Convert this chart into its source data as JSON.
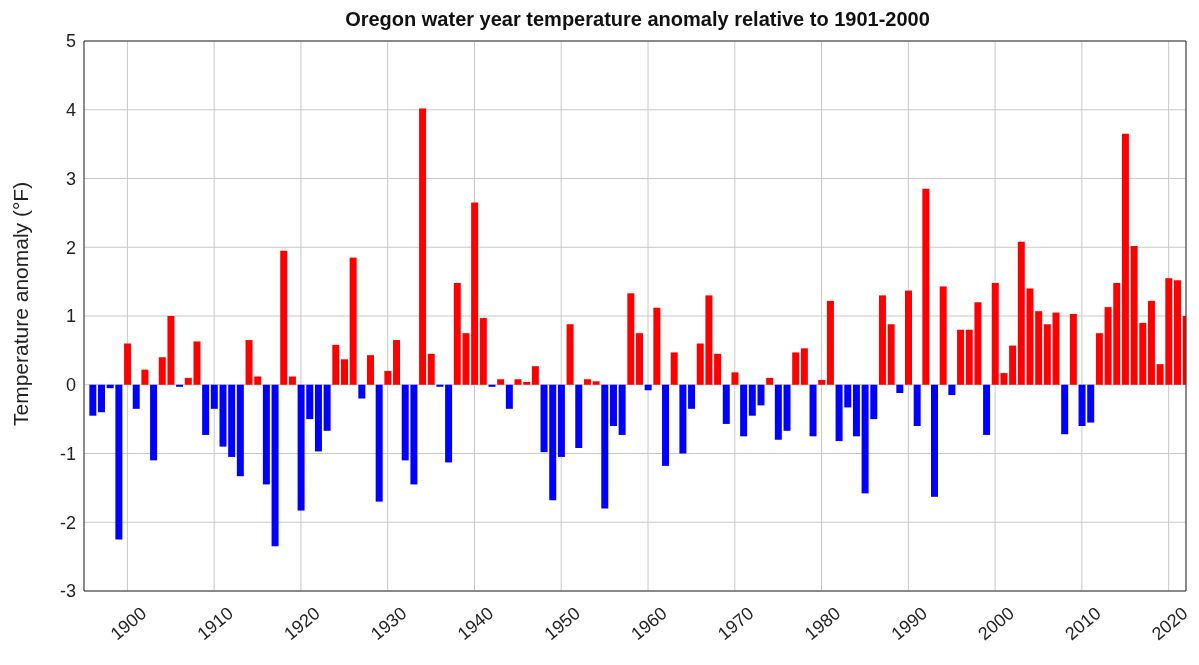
{
  "chart_data": {
    "type": "bar",
    "title": "Oregon water year temperature anomaly relative to 1901-2000",
    "ylabel": "Temperature anomaly (°F)",
    "x": [
      1896,
      1897,
      1898,
      1899,
      1900,
      1901,
      1902,
      1903,
      1904,
      1905,
      1906,
      1907,
      1908,
      1909,
      1910,
      1911,
      1912,
      1913,
      1914,
      1915,
      1916,
      1917,
      1918,
      1919,
      1920,
      1921,
      1922,
      1923,
      1924,
      1925,
      1926,
      1927,
      1928,
      1929,
      1930,
      1931,
      1932,
      1933,
      1934,
      1935,
      1936,
      1937,
      1938,
      1939,
      1940,
      1941,
      1942,
      1943,
      1944,
      1945,
      1946,
      1947,
      1948,
      1949,
      1950,
      1951,
      1952,
      1953,
      1954,
      1955,
      1956,
      1957,
      1958,
      1959,
      1960,
      1961,
      1962,
      1963,
      1964,
      1965,
      1966,
      1967,
      1968,
      1969,
      1970,
      1971,
      1972,
      1973,
      1974,
      1975,
      1976,
      1977,
      1978,
      1979,
      1980,
      1981,
      1982,
      1983,
      1984,
      1985,
      1986,
      1987,
      1988,
      1989,
      1990,
      1991,
      1992,
      1993,
      1994,
      1995,
      1996,
      1997,
      1998,
      1999,
      2000,
      2001,
      2002,
      2003,
      2004,
      2005,
      2006,
      2007,
      2008,
      2009,
      2010,
      2011,
      2012,
      2013,
      2014,
      2015,
      2016,
      2017,
      2018,
      2019,
      2020,
      2021,
      2022
    ],
    "values": [
      -0.45,
      -0.4,
      -0.05,
      -2.25,
      0.6,
      -0.35,
      0.22,
      -1.1,
      0.4,
      1.0,
      -0.03,
      0.1,
      0.63,
      -0.73,
      -0.35,
      -0.9,
      -1.05,
      -1.33,
      0.65,
      0.12,
      -1.45,
      -2.35,
      1.95,
      0.12,
      -1.83,
      -0.5,
      -0.97,
      -0.67,
      0.58,
      0.37,
      1.85,
      -0.2,
      0.43,
      -1.7,
      0.2,
      0.65,
      -1.1,
      -1.45,
      4.02,
      0.45,
      -0.03,
      -1.13,
      1.48,
      0.75,
      2.65,
      0.97,
      -0.03,
      0.08,
      -0.35,
      0.08,
      0.04,
      0.27,
      -0.98,
      -1.68,
      -1.05,
      0.88,
      -0.92,
      0.08,
      0.05,
      -1.8,
      -0.6,
      -0.73,
      1.33,
      0.75,
      -0.08,
      1.12,
      -1.18,
      0.47,
      -1.0,
      -0.35,
      0.6,
      1.3,
      0.45,
      -0.57,
      0.18,
      -0.75,
      -0.45,
      -0.3,
      0.1,
      -0.8,
      -0.67,
      0.47,
      0.53,
      -0.75,
      0.07,
      1.22,
      -0.82,
      -0.33,
      -0.75,
      -1.58,
      -0.5,
      1.3,
      0.88,
      -0.12,
      1.37,
      -0.6,
      2.85,
      -1.63,
      1.43,
      -0.15,
      0.8,
      0.8,
      1.2,
      -0.73,
      1.48,
      0.17,
      0.57,
      2.08,
      1.4,
      1.07,
      0.88,
      1.05,
      -0.72,
      1.03,
      -0.6,
      -0.55,
      0.75,
      1.13,
      1.48,
      3.65,
      2.02,
      0.9,
      1.22,
      0.3,
      1.55,
      1.52,
      1.0
    ],
    "colors": [
      "#0000ff",
      "#0000ff",
      "#0000ff",
      "#0000ff",
      "#ff0000",
      "#0000ff",
      "#ff0000",
      "#0000ff",
      "#ff0000",
      "#ff0000",
      "#0000ff",
      "#ff0000",
      "#ff0000",
      "#0000ff",
      "#0000ff",
      "#0000ff",
      "#0000ff",
      "#0000ff",
      "#ff0000",
      "#ff0000",
      "#0000ff",
      "#0000ff",
      "#ff0000",
      "#ff0000",
      "#0000ff",
      "#0000ff",
      "#0000ff",
      "#0000ff",
      "#ff0000",
      "#ff0000",
      "#ff0000",
      "#0000ff",
      "#ff0000",
      "#0000ff",
      "#ff0000",
      "#ff0000",
      "#0000ff",
      "#0000ff",
      "#ff0000",
      "#ff0000",
      "#0000ff",
      "#0000ff",
      "#ff0000",
      "#ff0000",
      "#ff0000",
      "#ff0000",
      "#0000ff",
      "#ff0000",
      "#0000ff",
      "#ff0000",
      "#ff0000",
      "#ff0000",
      "#0000ff",
      "#0000ff",
      "#0000ff",
      "#ff0000",
      "#0000ff",
      "#ff0000",
      "#ff0000",
      "#0000ff",
      "#0000ff",
      "#0000ff",
      "#ff0000",
      "#ff0000",
      "#0000ff",
      "#ff0000",
      "#0000ff",
      "#ff0000",
      "#0000ff",
      "#0000ff",
      "#ff0000",
      "#ff0000",
      "#ff0000",
      "#0000ff",
      "#ff0000",
      "#0000ff",
      "#0000ff",
      "#0000ff",
      "#ff0000",
      "#0000ff",
      "#0000ff",
      "#ff0000",
      "#ff0000",
      "#0000ff",
      "#ff0000",
      "#ff0000",
      "#0000ff",
      "#0000ff",
      "#0000ff",
      "#0000ff",
      "#0000ff",
      "#ff0000",
      "#ff0000",
      "#0000ff",
      "#ff0000",
      "#0000ff",
      "#ff0000",
      "#0000ff",
      "#ff0000",
      "#0000ff",
      "#ff0000",
      "#ff0000",
      "#ff0000",
      "#0000ff",
      "#ff0000",
      "#ff0000",
      "#ff0000",
      "#ff0000",
      "#ff0000",
      "#ff0000",
      "#ff0000",
      "#ff0000",
      "#0000ff",
      "#ff0000",
      "#0000ff",
      "#0000ff",
      "#ff0000",
      "#ff0000",
      "#ff0000",
      "#ff0000",
      "#ff0000",
      "#ff0000",
      "#ff0000",
      "#ff0000",
      "#ff0000",
      "#ff0000",
      "#ff0000"
    ],
    "xlim": [
      1895,
      2022
    ],
    "xticks": [
      1900,
      1910,
      1920,
      1930,
      1940,
      1950,
      1960,
      1970,
      1980,
      1990,
      2000,
      2010,
      2020
    ],
    "ylim": [
      -3,
      5
    ],
    "yticks": [
      -3,
      -2,
      -1,
      0,
      1,
      2,
      3,
      4,
      5
    ],
    "grid": true
  }
}
